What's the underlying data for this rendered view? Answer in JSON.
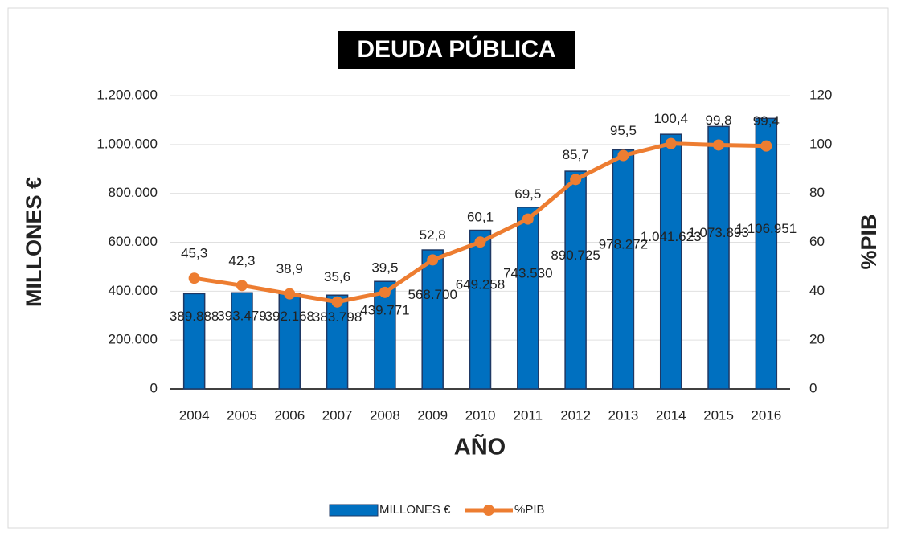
{
  "chart_data": {
    "type": "bar",
    "title": "DEUDA PÚBLICA",
    "x_label": "AÑO",
    "y_label": "MILLONES €",
    "y2_label": "%PIB",
    "categories": [
      "2004",
      "2005",
      "2006",
      "2007",
      "2008",
      "2009",
      "2010",
      "2011",
      "2012",
      "2013",
      "2014",
      "2015",
      "2016"
    ],
    "series": [
      {
        "name": "MILLONES €",
        "color": "#0070c0",
        "type": "bar",
        "values": [
          389888,
          393479,
          392168,
          383798,
          439771,
          568700,
          649258,
          743530,
          890725,
          978272,
          1041623,
          1073893,
          1106951
        ],
        "value_labels": [
          "389.888",
          "393.479",
          "392.168",
          "383.798",
          "439.771",
          "568.700",
          "649.258",
          "743.530",
          "890.725",
          "978.272",
          "1.041.623",
          "1.073.893",
          "1.106.951"
        ]
      },
      {
        "name": "%PIB",
        "color": "#ed7d31",
        "type": "line",
        "axis": "y2",
        "values": [
          45.3,
          42.3,
          38.9,
          35.6,
          39.5,
          52.8,
          60.1,
          69.5,
          85.7,
          95.5,
          100.4,
          99.8,
          99.4
        ],
        "value_labels": [
          "45,3",
          "42,3",
          "38,9",
          "35,6",
          "39,5",
          "52,8",
          "60,1",
          "69,5",
          "85,7",
          "95,5",
          "100,4",
          "99,8",
          "99,4"
        ]
      }
    ],
    "ylim": [
      0,
      1200000
    ],
    "yticks": [
      0,
      {
        "value": 200000,
        "label": "200.000"
      },
      {
        "value": 400000,
        "label": "400.000"
      },
      {
        "value": 600000,
        "label": "600.000"
      },
      {
        "value": 800000,
        "label": "800.000"
      },
      {
        "value": 1000000,
        "label": "1.000.000"
      },
      {
        "value": 1200000,
        "label": "1.200.000"
      }
    ],
    "y2lim": [
      0,
      120
    ],
    "y2ticks": [
      0,
      20,
      40,
      60,
      80,
      100,
      120
    ],
    "grid": true,
    "legend": "bottom"
  }
}
